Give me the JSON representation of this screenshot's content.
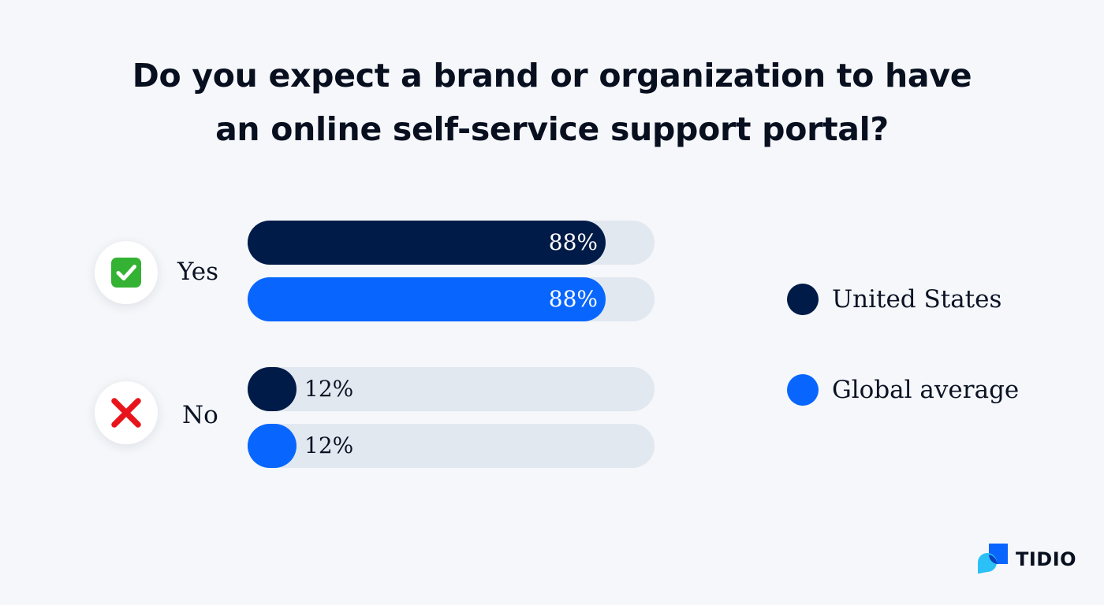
{
  "chart_data": {
    "type": "bar",
    "orientation": "horizontal",
    "title": "Do you expect a brand or organization to have an online self-service support portal?",
    "title_lines": [
      "Do you expect a brand or organization to have",
      "an online self-service support portal?"
    ],
    "categories": [
      "Yes",
      "No"
    ],
    "category_icons": [
      "check-mark-icon",
      "cross-mark-icon"
    ],
    "series": [
      {
        "name": "United States",
        "values": [
          88,
          12
        ],
        "labels": [
          "88%",
          "12%"
        ],
        "color": "#001b47"
      },
      {
        "name": "Global average",
        "values": [
          88,
          12
        ],
        "labels": [
          "88%",
          "12%"
        ],
        "color": "#0866ff"
      }
    ],
    "unit": "%",
    "xlim": [
      0,
      100
    ],
    "track_color": "#e2e8f0",
    "grid": false,
    "legend_position": "right"
  },
  "brand": {
    "name": "TIDIO",
    "icon": "tidio-logo-icon"
  }
}
